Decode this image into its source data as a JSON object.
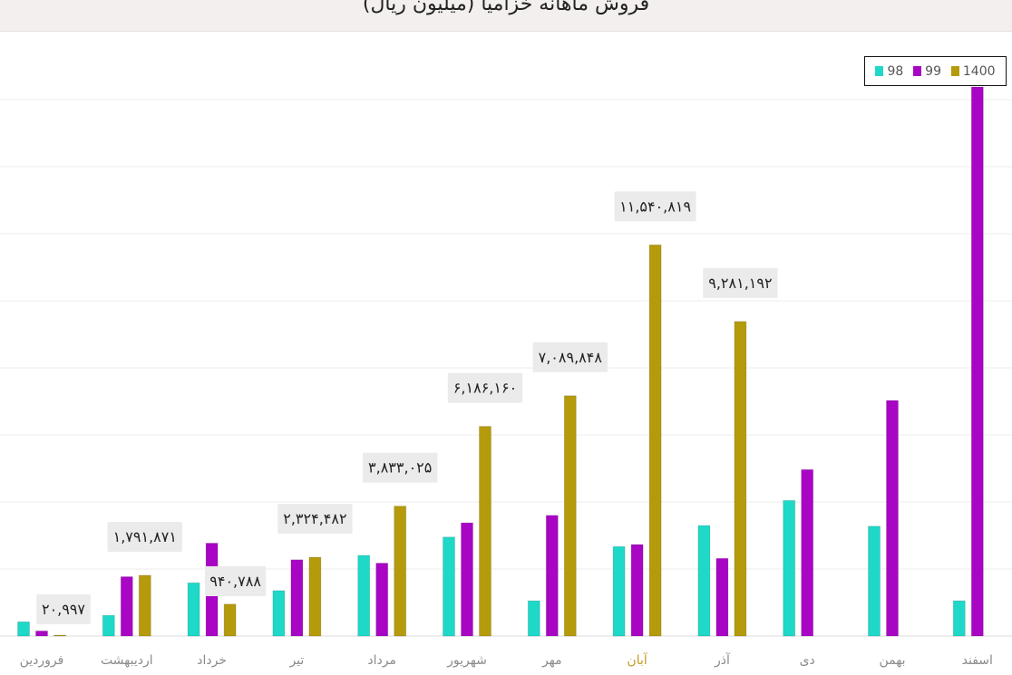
{
  "chart_data": {
    "type": "bar",
    "title": "فروش ماهانه خزامیا (میلیون ریال)",
    "categories": [
      "فروردین",
      "اردیبهشت",
      "خرداد",
      "تیر",
      "مرداد",
      "شهریور",
      "مهر",
      "آبان",
      "آذر",
      "دی",
      "بهمن",
      "اسفند"
    ],
    "series": [
      {
        "name": "98",
        "color": "#1ed8c8",
        "values": [
          420000,
          610000,
          1570000,
          1340000,
          2380000,
          2920000,
          1040000,
          2640000,
          3260000,
          4000000,
          3240000,
          1040000
        ]
      },
      {
        "name": "99",
        "color": "#a805c4",
        "values": [
          150000,
          1750000,
          2740000,
          2250000,
          2150000,
          3340000,
          3560000,
          2700000,
          2290000,
          4910000,
          6950000,
          16200000
        ]
      },
      {
        "name": "1400",
        "color": "#b59a0c",
        "values": [
          20997,
          1791871,
          940788,
          2324482,
          3833025,
          6186160,
          7089848,
          11540819,
          9281192,
          null,
          null,
          null
        ]
      }
    ],
    "data_labels": [
      "۲۰,۹۹۷",
      "۱,۷۹۱,۸۷۱",
      "۹۴۰,۷۸۸",
      "۲,۳۲۴,۴۸۲",
      "۳,۸۳۳,۰۲۵",
      "۶,۱۸۶,۱۶۰",
      "۷,۰۸۹,۸۴۸",
      "۱۱,۵۴۰,۸۱۹",
      "۹,۲۸۱,۱۹۲"
    ],
    "highlight_category": "آبان",
    "ylim": [
      0,
      16200000
    ],
    "grid": true,
    "legend": "top-right"
  }
}
